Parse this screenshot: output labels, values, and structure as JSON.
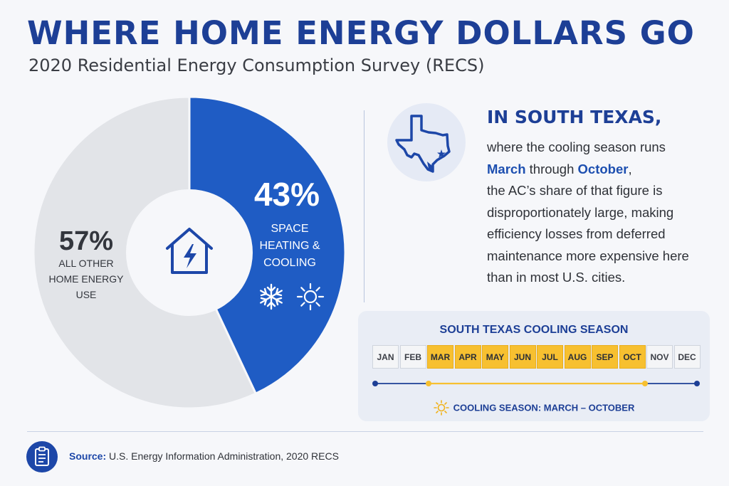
{
  "header": {
    "title": "WHERE HOME ENERGY DOLLARS GO",
    "subtitle": "2020 Residential Energy Consumption Survey (RECS)"
  },
  "chart_data": {
    "type": "pie",
    "style": "donut",
    "categories": [
      "SPACE HEATING & COOLING",
      "ALL OTHER HOME ENERGY USE"
    ],
    "values": [
      43,
      57
    ],
    "value_labels": [
      "43%",
      "57%"
    ],
    "colors": [
      "#1f5cc4",
      "#e2e4e8"
    ],
    "icons": [
      "house-bolt-icon",
      "snowflake-icon",
      "sun-icon"
    ]
  },
  "texas": {
    "heading": "IN SOUTH TEXAS,",
    "line1": "where the cooling season runs",
    "month_start": "March",
    "through": " through ",
    "month_end": "October",
    "comma": ",",
    "line3": "the AC’s share of that figure is",
    "line4": "disproportionately large, making",
    "line5": "efficiency losses from deferred",
    "line6": "maintenance more expensive here",
    "line7": "than in most U.S. cities.",
    "map_icon": "texas-map-icon"
  },
  "season": {
    "title": "SOUTH TEXAS COOLING SEASON",
    "months": [
      "JAN",
      "FEB",
      "MAR",
      "APR",
      "MAY",
      "JUN",
      "JUL",
      "AUG",
      "SEP",
      "OCT",
      "NOV",
      "DEC"
    ],
    "cooling_months": [
      "MAR",
      "APR",
      "MAY",
      "JUN",
      "JUL",
      "AUG",
      "SEP",
      "OCT"
    ],
    "caption": "COOLING SEASON: MARCH – OCTOBER",
    "accent": "#f7c030",
    "line_color": "#1d3f96"
  },
  "footer": {
    "source_label": "Source:",
    "source_text": " U.S. Energy Information Administration, 2020 RECS",
    "icon": "clipboard-icon"
  }
}
